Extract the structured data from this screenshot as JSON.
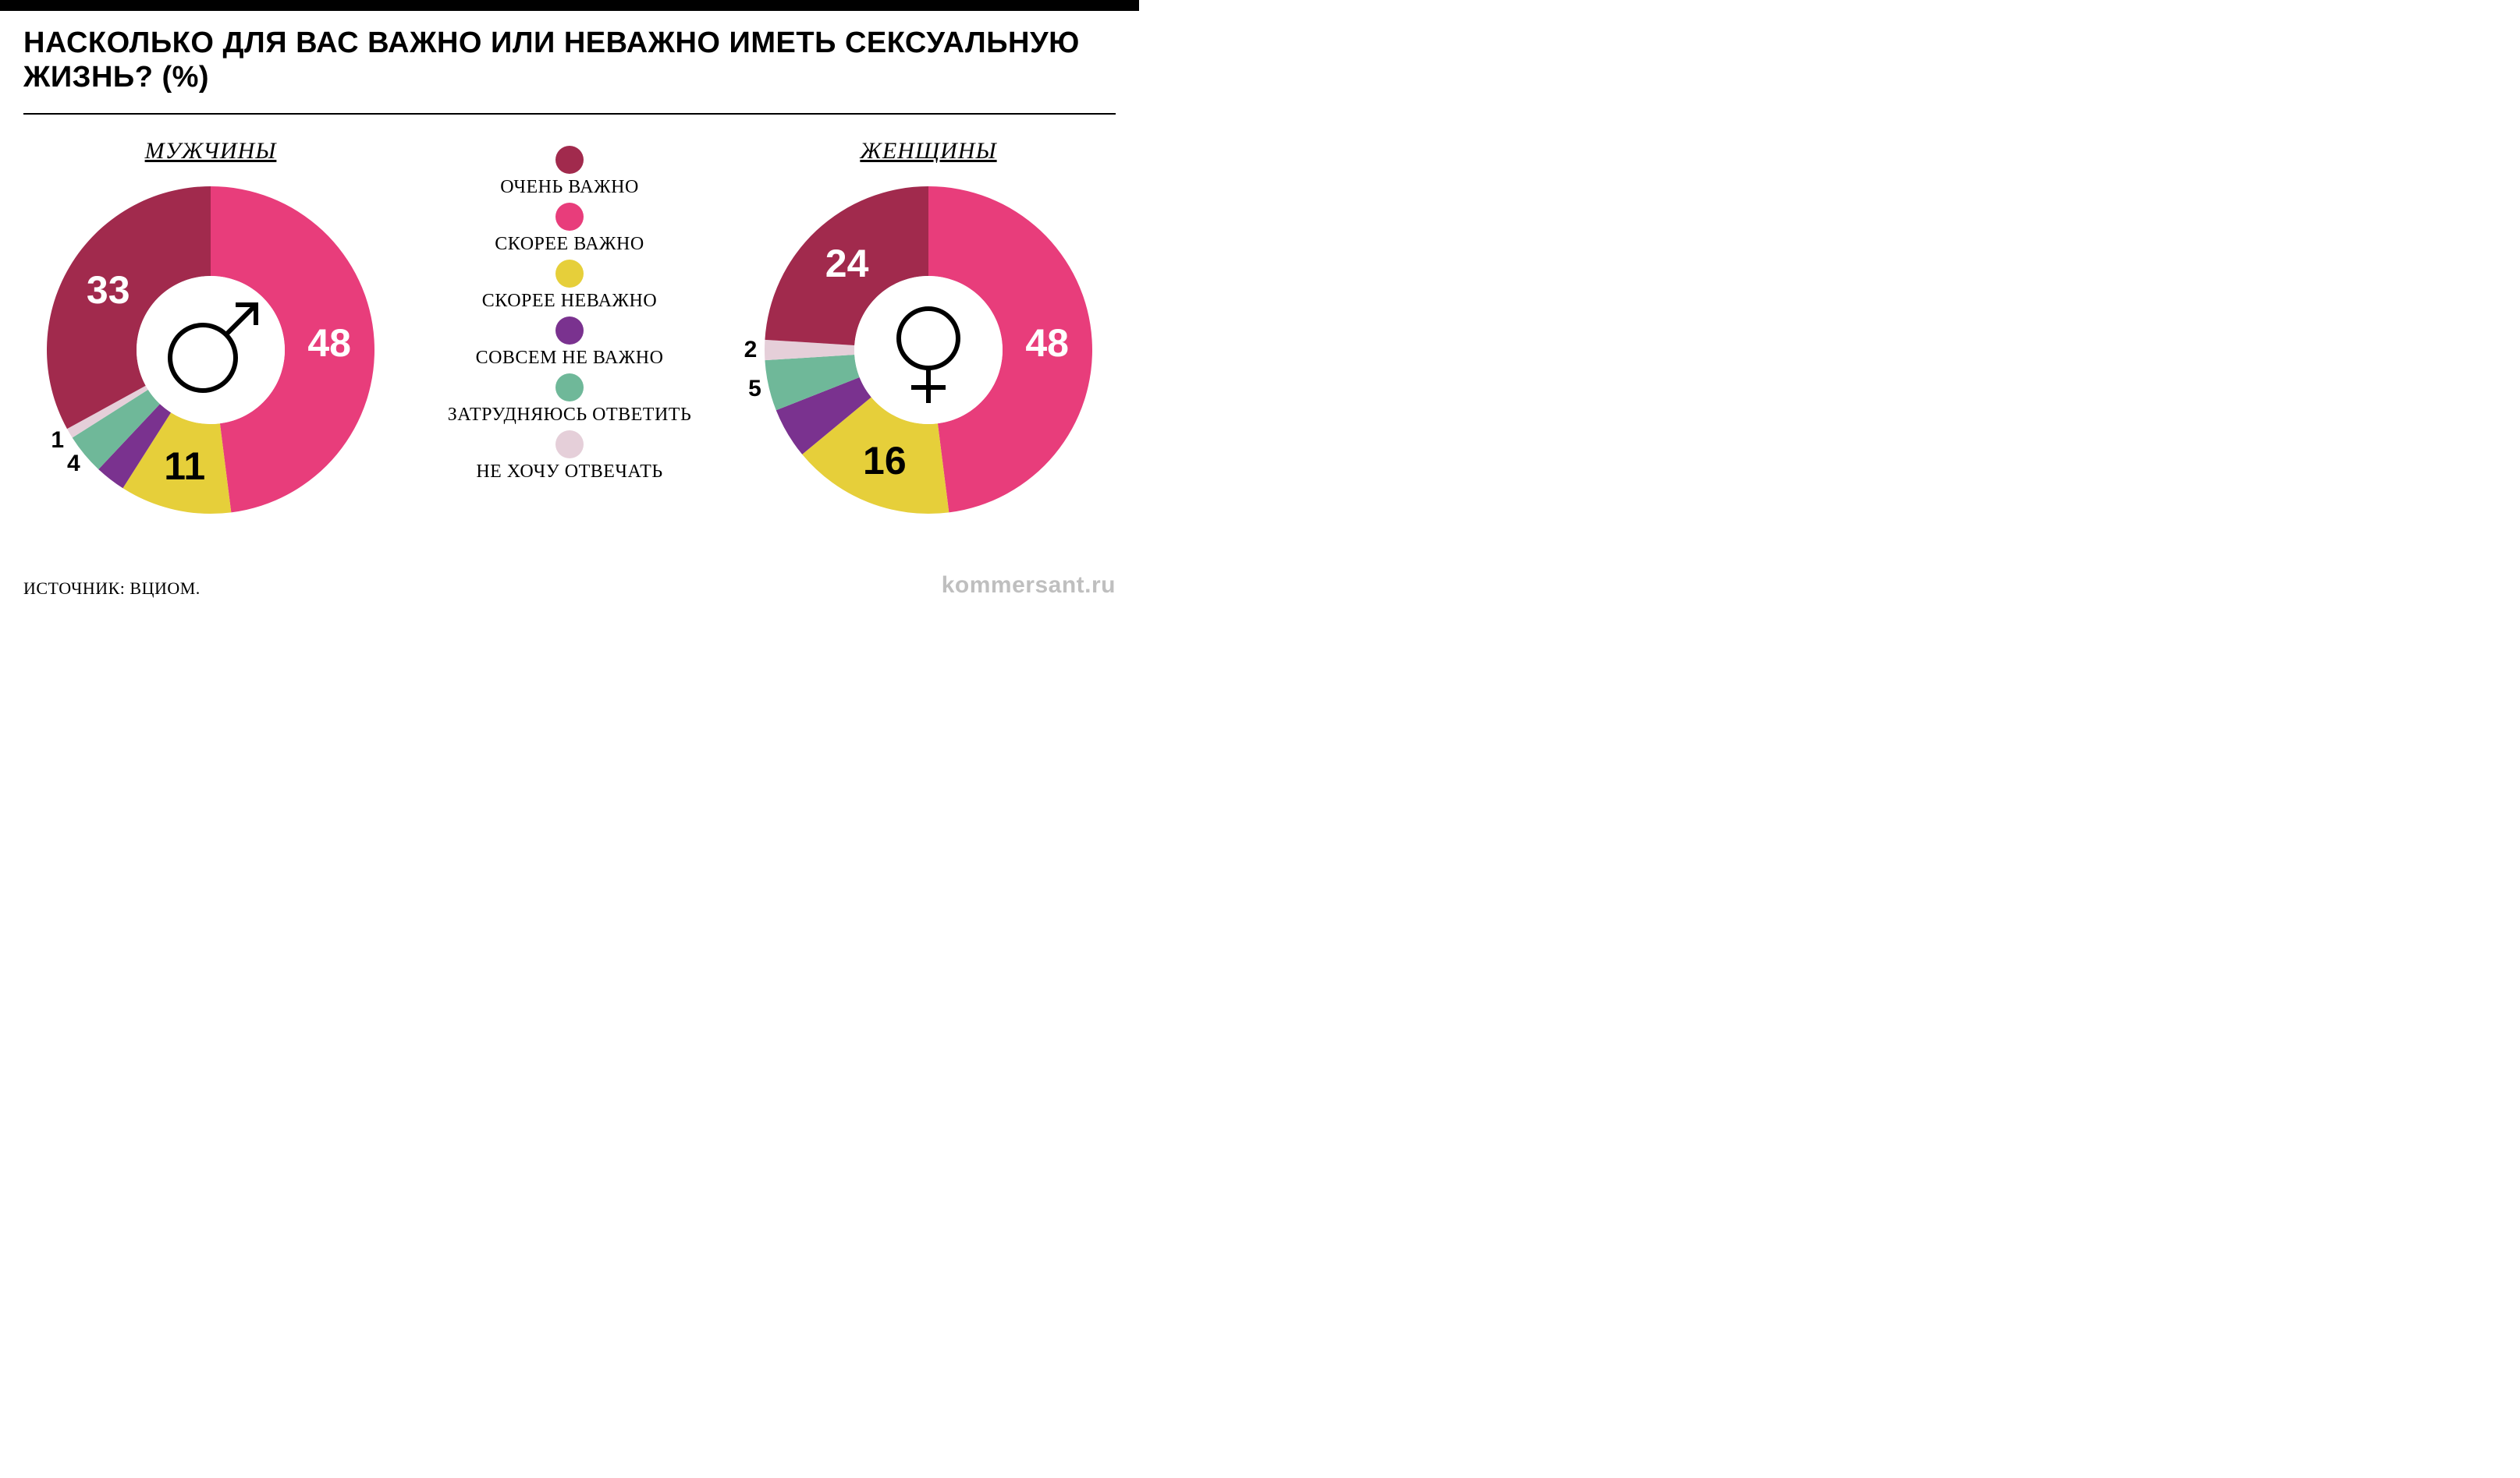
{
  "title": "НАСКОЛЬКО ДЛЯ ВАС ВАЖНО ИЛИ НЕВАЖНО ИМЕТЬ СЕКСУАЛЬНУЮ ЖИЗНЬ? (%)",
  "source": "ИСТОЧНИК: ВЦИОМ.",
  "watermark": "kommersant.ru",
  "legend": [
    {
      "label": "ОЧЕНЬ ВАЖНО",
      "color": "#a12a4d"
    },
    {
      "label": "СКОРЕЕ ВАЖНО",
      "color": "#e83d7b"
    },
    {
      "label": "СКОРЕЕ НЕВАЖНО",
      "color": "#e6cf3a"
    },
    {
      "label": "СОВСЕМ НЕ ВАЖНО",
      "color": "#7a328f"
    },
    {
      "label": "ЗАТРУДНЯЮСЬ ОТВЕТИТЬ",
      "color": "#6fb899"
    },
    {
      "label": "НЕ ХОЧУ ОТВЕЧАТЬ",
      "color": "#e5cfd9"
    }
  ],
  "series_order": [
    "СКОРЕЕ ВАЖНО",
    "СКОРЕЕ НЕВАЖНО",
    "СОВСЕМ НЕ ВАЖНО",
    "ЗАТРУДНЯЮСЬ ОТВЕТИТЬ",
    "НЕ ХОЧУ ОТВЕЧАТЬ",
    "ОЧЕНЬ ВАЖНО"
  ],
  "donut": {
    "outer_radius": 210,
    "inner_radius": 95,
    "size": 440,
    "start_angle_deg": -90,
    "direction": "clockwise",
    "background": "#ffffff",
    "label_font_family": "Arial",
    "big_label_fontsize": 50,
    "big_label_color_on_dark": "#ffffff",
    "big_label_color_on_light": "#000000",
    "small_label_fontsize": 30
  },
  "charts": {
    "men": {
      "title": "МУЖЧИНЫ",
      "icon": "male",
      "slices": [
        {
          "key": "СКОРЕЕ ВАЖНО",
          "value": 48,
          "color": "#e83d7b",
          "label_color": "#ffffff",
          "label_size": "big"
        },
        {
          "key": "СКОРЕЕ НЕВАЖНО",
          "value": 11,
          "color": "#e6cf3a",
          "label_color": "#000000",
          "label_size": "big"
        },
        {
          "key": "СОВСЕМ НЕ ВАЖНО",
          "value": 3,
          "color": "#7a328f",
          "label_color": "#ffffff",
          "label_size": "small"
        },
        {
          "key": "ЗАТРУДНЯЮСЬ ОТВЕТИТЬ",
          "value": 4,
          "color": "#6fb899",
          "label_color": "#000000",
          "label_size": "small"
        },
        {
          "key": "НЕ ХОЧУ ОТВЕЧАТЬ",
          "value": 1,
          "color": "#e5cfd9",
          "label_color": "#000000",
          "label_size": "small"
        },
        {
          "key": "ОЧЕНЬ ВАЖНО",
          "value": 33,
          "color": "#a12a4d",
          "label_color": "#ffffff",
          "label_size": "big"
        }
      ]
    },
    "women": {
      "title": "ЖЕНЩИНЫ",
      "icon": "female",
      "slices": [
        {
          "key": "СКОРЕЕ ВАЖНО",
          "value": 48,
          "color": "#e83d7b",
          "label_color": "#ffffff",
          "label_size": "big"
        },
        {
          "key": "СКОРЕЕ НЕВАЖНО",
          "value": 16,
          "color": "#e6cf3a",
          "label_color": "#000000",
          "label_size": "big"
        },
        {
          "key": "СОВСЕМ НЕ ВАЖНО",
          "value": 5,
          "color": "#7a328f",
          "label_color": "#ffffff",
          "label_size": "small"
        },
        {
          "key": "ЗАТРУДНЯЮСЬ ОТВЕТИТЬ",
          "value": 5,
          "color": "#6fb899",
          "label_color": "#000000",
          "label_size": "small"
        },
        {
          "key": "НЕ ХОЧУ ОТВЕЧАТЬ",
          "value": 2,
          "color": "#e5cfd9",
          "label_color": "#000000",
          "label_size": "small"
        },
        {
          "key": "ОЧЕНЬ ВАЖНО",
          "value": 24,
          "color": "#a12a4d",
          "label_color": "#ffffff",
          "label_size": "big"
        }
      ]
    }
  }
}
